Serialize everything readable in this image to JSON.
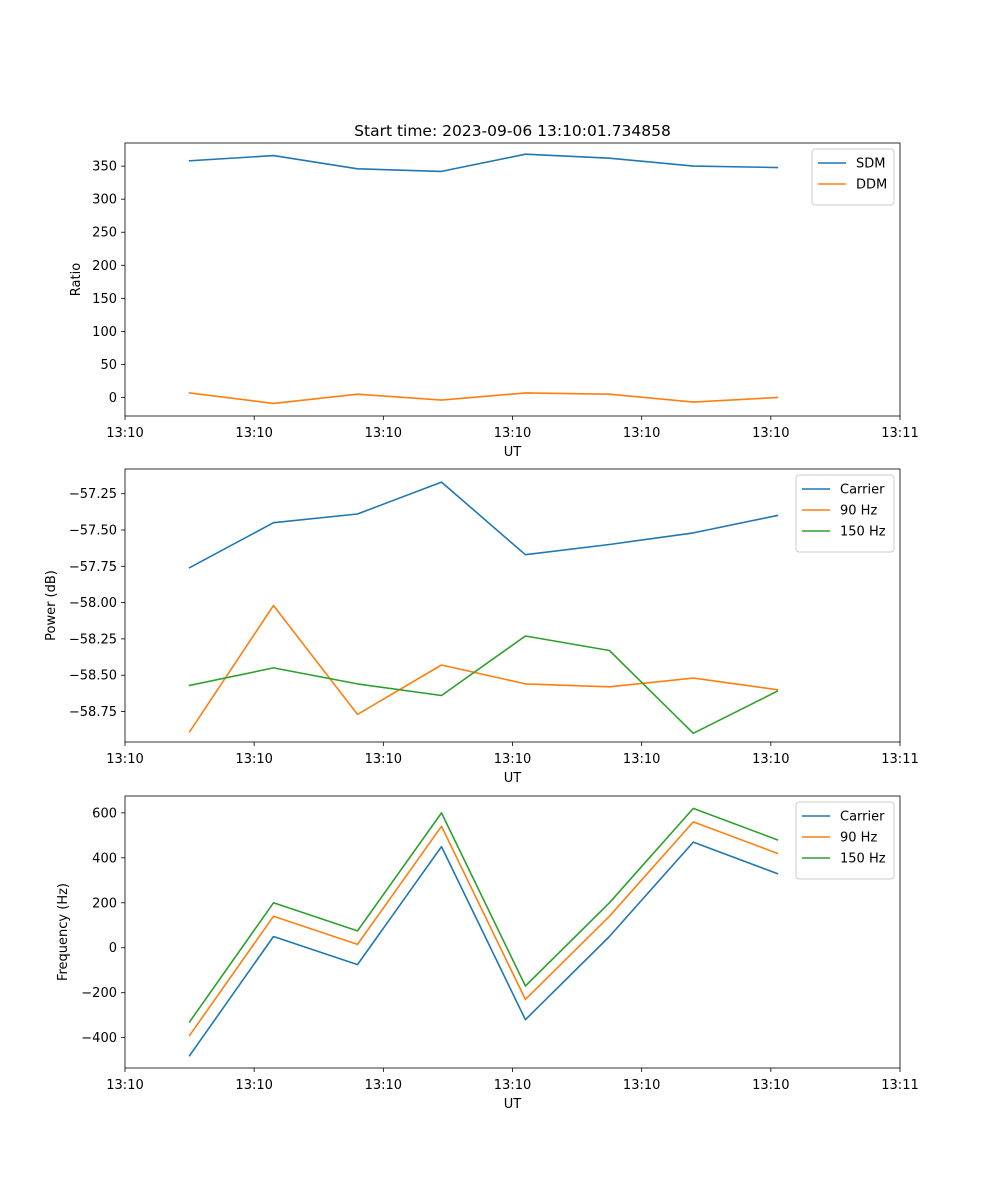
{
  "chart_data": [
    {
      "type": "line",
      "title": "Start time: 2023-09-06 13:10:01.734858",
      "xlabel": "UT",
      "ylabel": "Ratio",
      "xlim": [
        0,
        12
      ],
      "ylim": [
        -28,
        385
      ],
      "x_ticks": [
        0,
        2,
        4,
        6,
        8,
        10,
        12
      ],
      "x_tick_labels": [
        "13:10",
        "13:10",
        "13:10",
        "13:10",
        "13:10",
        "13:10",
        "13:11"
      ],
      "y_ticks": [
        0,
        50,
        100,
        150,
        200,
        250,
        300,
        350
      ],
      "y_tick_labels": [
        "0",
        "50",
        "100",
        "150",
        "200",
        "250",
        "300",
        "350"
      ],
      "legend_position": "top-right",
      "x": [
        1,
        2.3,
        3.6,
        4.9,
        6.2,
        7.5,
        8.8,
        10.1
      ],
      "series": [
        {
          "name": "SDM",
          "color": "#1f77b4",
          "values": [
            358,
            366,
            346,
            342,
            368,
            362,
            350,
            348
          ]
        },
        {
          "name": "DDM",
          "color": "#ff7f0e",
          "values": [
            7,
            -9,
            5,
            -4,
            7,
            5,
            -7,
            0
          ]
        }
      ]
    },
    {
      "type": "line",
      "title": "",
      "xlabel": "UT",
      "ylabel": "Power (dB)",
      "xlim": [
        0,
        12
      ],
      "ylim": [
        -58.96,
        -57.08
      ],
      "x_ticks": [
        0,
        2,
        4,
        6,
        8,
        10,
        12
      ],
      "x_tick_labels": [
        "13:10",
        "13:10",
        "13:10",
        "13:10",
        "13:10",
        "13:10",
        "13:11"
      ],
      "y_ticks": [
        -58.75,
        -58.5,
        -58.25,
        -58.0,
        -57.75,
        -57.5,
        -57.25
      ],
      "y_tick_labels": [
        "−58.75",
        "−58.50",
        "−58.25",
        "−58.00",
        "−57.75",
        "−57.50",
        "−57.25"
      ],
      "legend_position": "top-right",
      "x": [
        1,
        2.3,
        3.6,
        4.9,
        6.2,
        7.5,
        8.8,
        10.1
      ],
      "series": [
        {
          "name": "Carrier",
          "color": "#1f77b4",
          "values": [
            -57.76,
            -57.45,
            -57.39,
            -57.17,
            -57.67,
            -57.6,
            -57.52,
            -57.4
          ]
        },
        {
          "name": "90 Hz",
          "color": "#ff7f0e",
          "values": [
            -58.89,
            -58.02,
            -58.77,
            -58.43,
            -58.56,
            -58.58,
            -58.52,
            -58.6
          ]
        },
        {
          "name": "150 Hz",
          "color": "#2ca02c",
          "values": [
            -58.57,
            -58.45,
            -58.56,
            -58.64,
            -58.23,
            -58.33,
            -58.9,
            -58.61
          ]
        }
      ]
    },
    {
      "type": "line",
      "title": "",
      "xlabel": "UT",
      "ylabel": "Frequency (Hz)",
      "xlim": [
        0,
        12
      ],
      "ylim": [
        -535,
        675
      ],
      "x_ticks": [
        0,
        2,
        4,
        6,
        8,
        10,
        12
      ],
      "x_tick_labels": [
        "13:10",
        "13:10",
        "13:10",
        "13:10",
        "13:10",
        "13:10",
        "13:11"
      ],
      "y_ticks": [
        -400,
        -200,
        0,
        200,
        400,
        600
      ],
      "y_tick_labels": [
        "−400",
        "−200",
        "0",
        "200",
        "400",
        "600"
      ],
      "legend_position": "top-right",
      "x": [
        1,
        2.3,
        3.6,
        4.9,
        6.2,
        7.5,
        8.8,
        10.1
      ],
      "series": [
        {
          "name": "Carrier",
          "color": "#1f77b4",
          "values": [
            -480,
            50,
            -75,
            450,
            -320,
            50,
            470,
            330
          ]
        },
        {
          "name": "90 Hz",
          "color": "#ff7f0e",
          "values": [
            -390,
            140,
            15,
            540,
            -230,
            140,
            560,
            420
          ]
        },
        {
          "name": "150 Hz",
          "color": "#2ca02c",
          "values": [
            -330,
            200,
            75,
            600,
            -170,
            200,
            620,
            480
          ]
        }
      ]
    }
  ]
}
